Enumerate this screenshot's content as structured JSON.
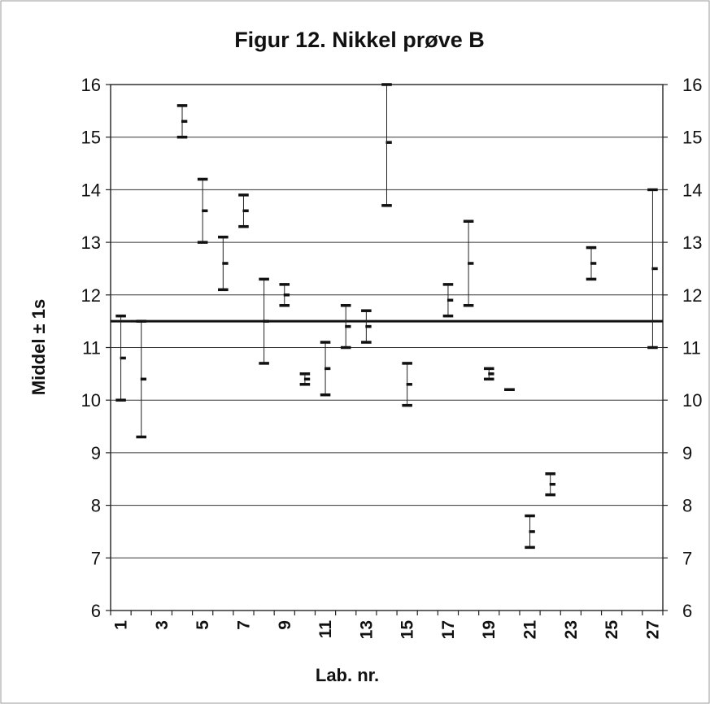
{
  "chart_data": {
    "type": "scatter",
    "title": "Figur 12. Nikkel prøve B",
    "xlabel": "Lab. nr.",
    "ylabel": "Middel ± 1s",
    "ylim": [
      6,
      16
    ],
    "y_ticks": [
      "6",
      "7",
      "8",
      "9",
      "10",
      "11",
      "12",
      "13",
      "14",
      "15",
      "16"
    ],
    "secondary_y_ticks": [
      "6",
      "7",
      "8",
      "9",
      "10",
      "11",
      "12",
      "13",
      "14",
      "15",
      "16"
    ],
    "x_tick_labels": [
      "1",
      "3",
      "5",
      "7",
      "9",
      "11",
      "13",
      "15",
      "17",
      "19",
      "21",
      "23",
      "25",
      "27"
    ],
    "x_range": [
      1,
      27
    ],
    "grid": "horizontal",
    "reference_line": 11.5,
    "series": [
      {
        "points": [
          {
            "lab": 1,
            "low": 10.0,
            "mean": 10.8,
            "high": 11.6
          },
          {
            "lab": 2,
            "low": 9.3,
            "mean": 10.4,
            "high": 11.5
          },
          {
            "lab": 4,
            "low": 15.0,
            "mean": 15.3,
            "high": 15.6
          },
          {
            "lab": 5,
            "low": 13.0,
            "mean": 13.6,
            "high": 14.2
          },
          {
            "lab": 6,
            "low": 12.1,
            "mean": 12.6,
            "high": 13.1
          },
          {
            "lab": 7,
            "low": 13.3,
            "mean": 13.6,
            "high": 13.9
          },
          {
            "lab": 8,
            "low": 10.7,
            "mean": 11.5,
            "high": 12.3
          },
          {
            "lab": 9,
            "low": 11.8,
            "mean": 12.0,
            "high": 12.2
          },
          {
            "lab": 10,
            "low": 10.3,
            "mean": 10.4,
            "high": 10.5
          },
          {
            "lab": 11,
            "low": 10.1,
            "mean": 10.6,
            "high": 11.1
          },
          {
            "lab": 12,
            "low": 11.0,
            "mean": 11.4,
            "high": 11.8
          },
          {
            "lab": 13,
            "low": 11.1,
            "mean": 11.4,
            "high": 11.7
          },
          {
            "lab": 14,
            "low": 13.7,
            "mean": 14.9,
            "high": 16.0
          },
          {
            "lab": 15,
            "low": 9.9,
            "mean": 10.3,
            "high": 10.7
          },
          {
            "lab": 17,
            "low": 11.6,
            "mean": 11.9,
            "high": 12.2
          },
          {
            "lab": 18,
            "low": 11.8,
            "mean": 12.6,
            "high": 13.4
          },
          {
            "lab": 19,
            "low": 10.4,
            "mean": 10.5,
            "high": 10.6
          },
          {
            "lab": 20,
            "low": 10.2,
            "mean": 10.2,
            "high": 10.2
          },
          {
            "lab": 21,
            "low": 7.2,
            "mean": 7.5,
            "high": 7.8
          },
          {
            "lab": 22,
            "low": 8.2,
            "mean": 8.4,
            "high": 8.6
          },
          {
            "lab": 24,
            "low": 12.3,
            "mean": 12.6,
            "high": 12.9
          },
          {
            "lab": 27,
            "low": 11.0,
            "mean": 12.5,
            "high": 14.0
          }
        ]
      }
    ]
  }
}
